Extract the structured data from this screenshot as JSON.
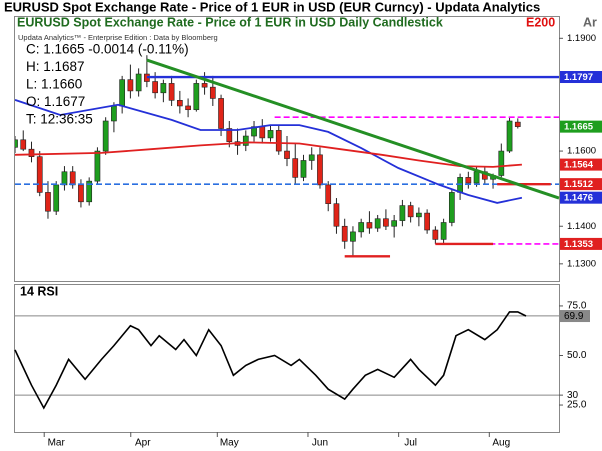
{
  "header": {
    "title": "EURUSD Spot Exchange Rate - Price of 1 EUR in USD (EUR Curncy) -  Updata Analytics"
  },
  "chart_data": [
    {
      "type": "candlestick",
      "title": "EURUSD Spot Exchange Rate - Price of 1 EUR in USD Daily Candlestick",
      "subtitle": "Updata Analytics™ - Enterprise Edition : Data by Bloomberg",
      "tags": [
        {
          "text": "E200",
          "color": "#e01010"
        },
        {
          "text": "Ar",
          "color": "#666666"
        }
      ],
      "info_lines": [
        "C: 1.1665  -0.0014 (-0.11%)",
        "H: 1.1687",
        "L: 1.1660",
        "O: 1.1677",
        "T: 12:36:35"
      ],
      "xlim": [
        0,
        132
      ],
      "ylim": [
        1.1257,
        1.1954
      ],
      "yticks": [
        {
          "value": 1.19,
          "label": "1.1900"
        },
        {
          "value": 1.16,
          "label": "1.1600"
        },
        {
          "value": 1.14,
          "label": "1.1400"
        },
        {
          "value": 1.13,
          "label": "1.1300"
        }
      ],
      "up_color": "#1e9e1e",
      "down_color": "#e02418",
      "x": [
        0,
        2,
        4,
        6,
        8,
        10,
        12,
        14,
        16,
        18,
        20,
        22,
        24,
        26,
        28,
        30,
        32,
        34,
        36,
        38,
        40,
        42,
        44,
        46,
        48,
        50,
        52,
        54,
        56,
        58,
        60,
        62,
        64,
        66,
        68,
        70,
        72,
        74,
        76,
        78,
        80,
        82,
        84,
        86,
        88,
        90,
        92,
        94,
        96,
        98,
        100,
        102,
        104,
        106,
        108,
        110,
        112,
        114,
        116,
        118,
        120,
        122
      ],
      "open": [
        1.161,
        1.163,
        1.1605,
        1.1585,
        1.149,
        1.144,
        1.151,
        1.1545,
        1.151,
        1.1465,
        1.152,
        1.16,
        1.168,
        1.172,
        1.179,
        1.176,
        1.1805,
        1.1785,
        1.1755,
        1.178,
        1.1735,
        1.172,
        1.171,
        1.178,
        1.177,
        1.174,
        1.166,
        1.1625,
        1.1615,
        1.164,
        1.1665,
        1.1635,
        1.1655,
        1.16,
        1.158,
        1.153,
        1.1575,
        1.159,
        1.151,
        1.146,
        1.14,
        1.136,
        1.1385,
        1.141,
        1.1395,
        1.142,
        1.14,
        1.1415,
        1.1455,
        1.1425,
        1.1435,
        1.139,
        1.1365,
        1.141,
        1.149,
        1.153,
        1.1515,
        1.1545,
        1.1525,
        1.1535,
        1.16,
        1.1677
      ],
      "high": [
        1.164,
        1.1655,
        1.1625,
        1.16,
        1.152,
        1.152,
        1.156,
        1.156,
        1.1525,
        1.153,
        1.161,
        1.169,
        1.173,
        1.18,
        1.183,
        1.182,
        1.1855,
        1.181,
        1.179,
        1.18,
        1.176,
        1.174,
        1.179,
        1.181,
        1.18,
        1.175,
        1.168,
        1.166,
        1.1655,
        1.168,
        1.1685,
        1.167,
        1.167,
        1.164,
        1.162,
        1.159,
        1.161,
        1.161,
        1.152,
        1.1475,
        1.142,
        1.14,
        1.142,
        1.144,
        1.143,
        1.1445,
        1.143,
        1.147,
        1.1465,
        1.145,
        1.1445,
        1.14,
        1.142,
        1.15,
        1.154,
        1.1545,
        1.156,
        1.156,
        1.154,
        1.162,
        1.169,
        1.1687
      ],
      "low": [
        1.1595,
        1.16,
        1.157,
        1.148,
        1.142,
        1.143,
        1.1495,
        1.15,
        1.145,
        1.1455,
        1.151,
        1.159,
        1.165,
        1.17,
        1.174,
        1.1745,
        1.177,
        1.174,
        1.173,
        1.172,
        1.17,
        1.169,
        1.1705,
        1.175,
        1.172,
        1.164,
        1.161,
        1.159,
        1.16,
        1.1625,
        1.162,
        1.1625,
        1.159,
        1.156,
        1.151,
        1.152,
        1.155,
        1.15,
        1.144,
        1.138,
        1.134,
        1.132,
        1.137,
        1.138,
        1.1385,
        1.139,
        1.137,
        1.14,
        1.141,
        1.14,
        1.138,
        1.1353,
        1.1355,
        1.14,
        1.147,
        1.15,
        1.1505,
        1.151,
        1.15,
        1.153,
        1.1595,
        1.166
      ],
      "close": [
        1.163,
        1.1605,
        1.1585,
        1.149,
        1.144,
        1.151,
        1.1545,
        1.151,
        1.1465,
        1.152,
        1.16,
        1.168,
        1.172,
        1.179,
        1.176,
        1.1805,
        1.1785,
        1.1755,
        1.178,
        1.1735,
        1.172,
        1.171,
        1.178,
        1.177,
        1.174,
        1.166,
        1.1625,
        1.1615,
        1.164,
        1.1665,
        1.1635,
        1.1655,
        1.16,
        1.158,
        1.153,
        1.1575,
        1.159,
        1.151,
        1.146,
        1.14,
        1.136,
        1.1385,
        1.141,
        1.1395,
        1.142,
        1.14,
        1.1415,
        1.1455,
        1.1425,
        1.1435,
        1.139,
        1.1365,
        1.141,
        1.149,
        1.153,
        1.1515,
        1.1545,
        1.1525,
        1.1535,
        1.16,
        1.168,
        1.1665
      ],
      "series": [
        {
          "color": "#2430d8",
          "x": [
            0,
            11,
            25,
            38,
            45,
            54,
            62,
            69,
            76,
            84,
            93,
            103,
            110,
            117,
            123
          ],
          "values": [
            1.1736,
            1.1696,
            1.1723,
            1.1683,
            1.1656,
            1.1656,
            1.1669,
            1.1669,
            1.1651,
            1.1608,
            1.1555,
            1.151,
            1.1483,
            1.1462,
            1.1476
          ]
        },
        {
          "color": "#e02020",
          "x": [
            0,
            21,
            33,
            45,
            57,
            69,
            79,
            89,
            98,
            108,
            116,
            123
          ],
          "values": [
            1.159,
            1.1595,
            1.1605,
            1.1615,
            1.1623,
            1.162,
            1.1605,
            1.159,
            1.1575,
            1.156,
            1.1558,
            1.1564
          ]
        }
      ],
      "trendline": {
        "color": "#248f24",
        "x": [
          32,
          132
        ],
        "values": [
          1.1842,
          1.1475
        ]
      },
      "levels": [
        {
          "value": 1.1797,
          "x": [
            32,
            132
          ],
          "color": "#2430d8",
          "dashed": false
        },
        {
          "value": 1.169,
          "x": [
            63,
            132
          ],
          "color": "#ff00ff",
          "dashed": true
        },
        {
          "value": 1.1512,
          "x": [
            0,
            132
          ],
          "color": "#2a6fe0",
          "dashed": true
        },
        {
          "value": 1.1512,
          "x": [
            117,
            130
          ],
          "color": "#e02020",
          "dashed": false
        },
        {
          "value": 1.1353,
          "x": [
            102,
            132
          ],
          "color": "#ff00ff",
          "dashed": true
        },
        {
          "value": 1.1353,
          "x": [
            102,
            116
          ],
          "color": "#e02020",
          "dashed": false
        },
        {
          "value": 1.132,
          "x": [
            80,
            91
          ],
          "color": "#e02020",
          "dashed": false
        }
      ],
      "price_labels": [
        {
          "value": 1.1797,
          "color": "#2430d8"
        },
        {
          "value": 1.1665,
          "color": "#1e9e1e"
        },
        {
          "value": 1.1564,
          "color": "#e02020"
        },
        {
          "value": 1.1512,
          "color": "#e02020"
        },
        {
          "value": 1.1476,
          "color": "#2430d8"
        },
        {
          "value": 1.1353,
          "color": "#e02020"
        }
      ]
    },
    {
      "type": "line",
      "title": "14 RSI",
      "xlim": [
        0,
        132
      ],
      "ylim": [
        11.4,
        79
      ],
      "yticks": [
        {
          "value": 75,
          "label": "75.0"
        },
        {
          "value": 50,
          "label": "50.0"
        },
        30,
        {
          "value": 25,
          "label": "25.0"
        }
      ],
      "levels": [
        70,
        30
      ],
      "xticks": [
        {
          "value": 10,
          "label": "Mar"
        },
        {
          "value": 31,
          "label": "Apr"
        },
        {
          "value": 52,
          "label": "May"
        },
        {
          "value": 74,
          "label": "Jun"
        },
        {
          "value": 96,
          "label": "Jul"
        },
        {
          "value": 118,
          "label": "Aug"
        }
      ],
      "series": [
        {
          "color": "#000000",
          "x": [
            0,
            4,
            7,
            10,
            13,
            17,
            21,
            24,
            28,
            30,
            33,
            35,
            39,
            41,
            44,
            47,
            50,
            53,
            56,
            59,
            63,
            67,
            69,
            73,
            76,
            80,
            82,
            85,
            88,
            92,
            96,
            98,
            102,
            104,
            107,
            110,
            114,
            117,
            120,
            122,
            124
          ],
          "values": [
            52.8,
            35,
            23.5,
            35,
            48,
            38,
            48,
            55,
            65,
            63,
            55,
            60,
            53,
            58,
            50,
            63,
            55,
            40,
            45,
            48,
            50,
            45,
            48,
            40,
            33,
            28,
            33,
            40,
            43,
            39,
            48,
            43,
            35,
            40,
            60,
            63,
            58,
            63,
            72,
            72,
            69.9
          ]
        }
      ],
      "last_value": 69.9
    }
  ]
}
